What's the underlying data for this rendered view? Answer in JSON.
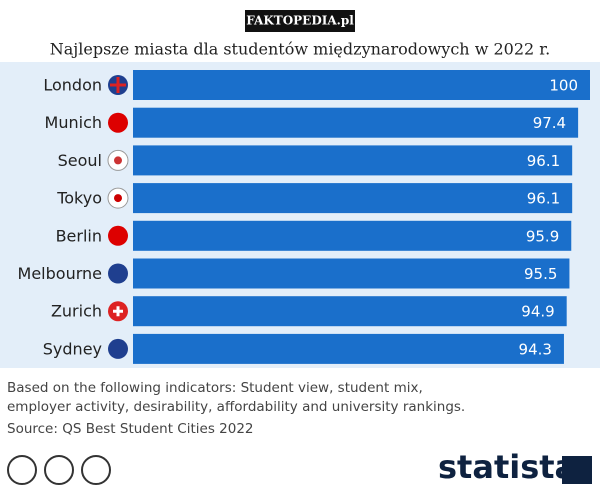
{
  "watermark": "FAKTOPEDIA.pl",
  "chart_data": {
    "type": "bar",
    "orientation": "horizontal",
    "title": "Najlepsze miasta dla studentów międzynarodowych w 2022 r.",
    "categories": [
      "London",
      "Munich",
      "Seoul",
      "Tokyo",
      "Berlin",
      "Melbourne",
      "Zurich",
      "Sydney"
    ],
    "values": [
      100,
      97.4,
      96.1,
      96.1,
      95.9,
      95.5,
      94.9,
      94.3
    ],
    "color": "#1a6fcb",
    "xlim": [
      0,
      100
    ],
    "notes": [
      "Based on the following indicators: Student view, student mix,",
      "employer activity, desirability, affordability and university rankings."
    ],
    "source": "Source: QS Best Student Cities 2022"
  },
  "brand": "statista"
}
